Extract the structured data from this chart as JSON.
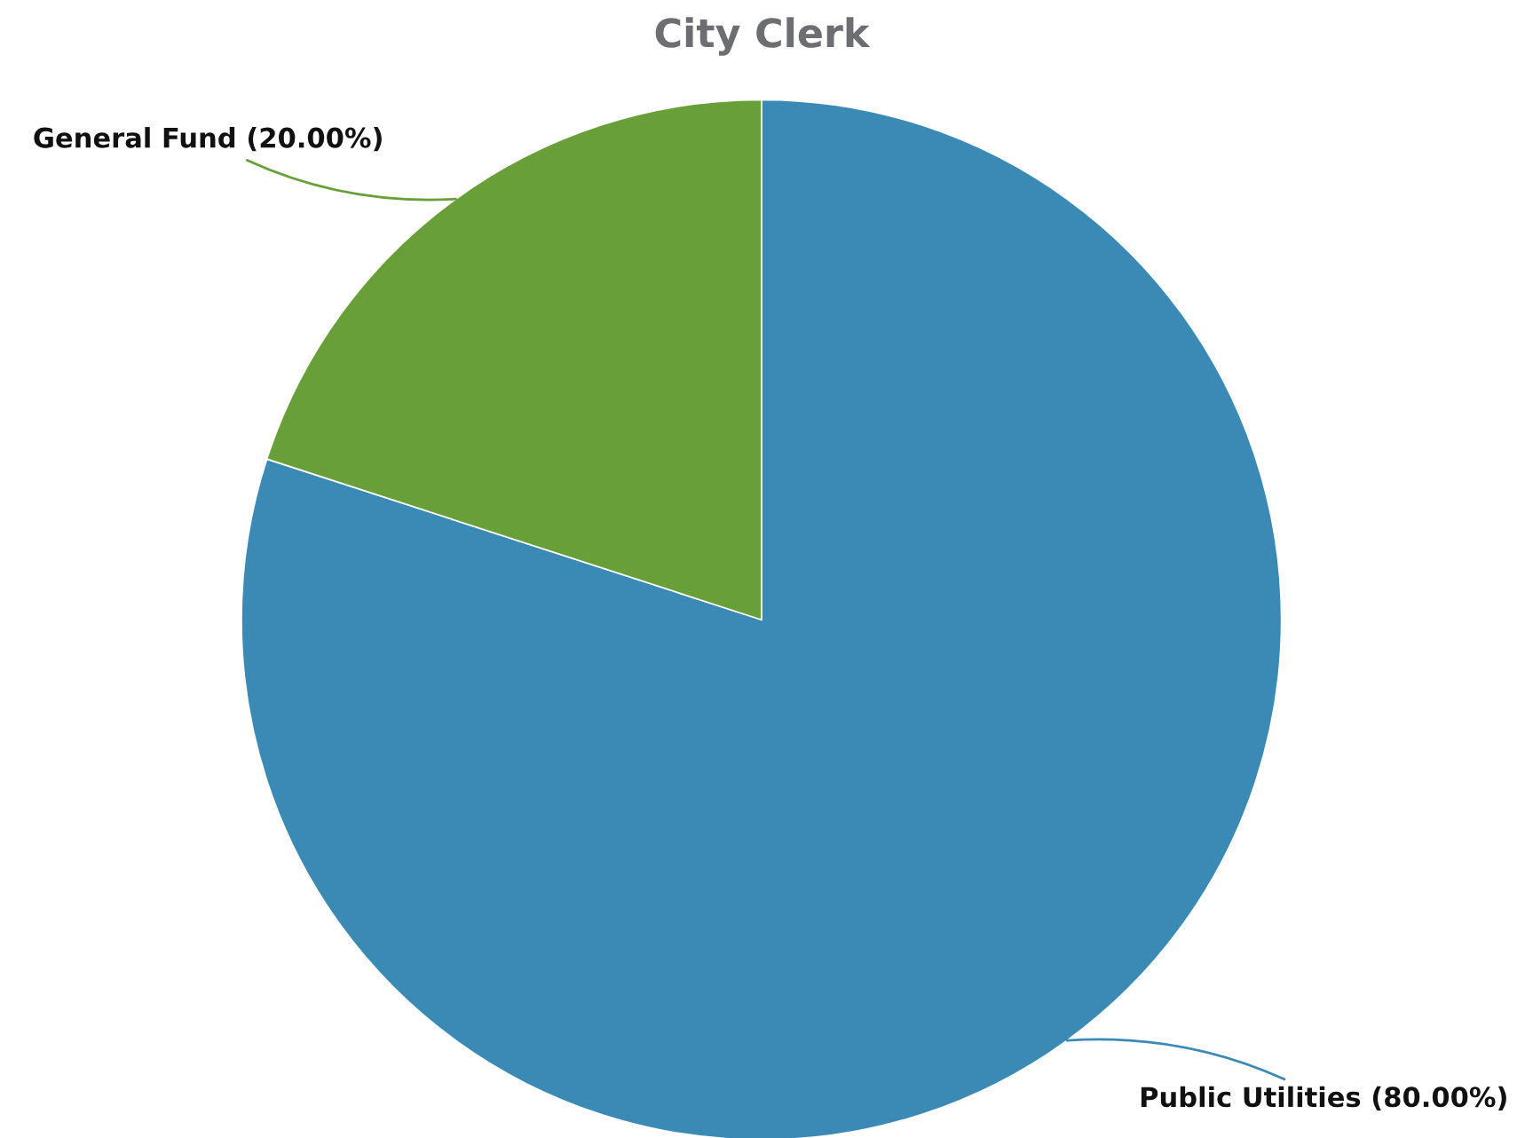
{
  "chart_data": {
    "type": "pie",
    "title": "City Clerk",
    "categories": [
      "Public Utilities",
      "General Fund"
    ],
    "values": [
      80,
      20
    ],
    "value_labels": [
      "(80.00%)",
      "(20.00%)"
    ],
    "colors": [
      "#3b8ab5",
      "#689f38"
    ],
    "legend": false
  }
}
